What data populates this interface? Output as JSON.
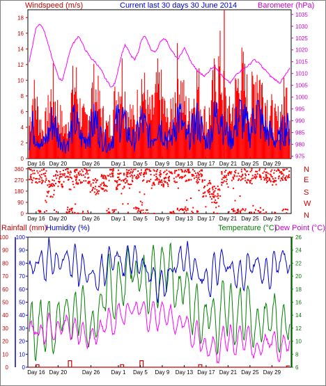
{
  "header": {
    "windspeed": "Windspeed (m/s)",
    "title": "Current last 30 days 30 June 2014",
    "barometer": "Barometer (hPa)"
  },
  "footer": {
    "rainfall": "Rainfall (mm)",
    "humidity": "Humidity (%)",
    "temperature": "Temperature (°C)",
    "dewpoint": "Dew Point (°C)"
  },
  "colors": {
    "gust": "#ff0000",
    "wind": "#0000ff",
    "baro": "#ff00ff",
    "dir": "#ff0000",
    "rain": "#cc0000",
    "hum": "#0000cc",
    "temp": "#008000",
    "dew": "#ff00ff",
    "frame": "#000000",
    "border": "#7f7f7f",
    "axisLeftTop": "#cc0000",
    "axisRight": "#cc00cc",
    "axisRain": "#cc0000",
    "axisHum": "#0000cc",
    "axisTemp": "#008000"
  },
  "chart_data": [
    {
      "type": "line",
      "panel": "wind-barometer",
      "x_labels": [
        "Day 16",
        "Day 20",
        "Day 26",
        "Day 1",
        "Day 5",
        "Day 9",
        "Day 13",
        "Day 17",
        "Day 21",
        "Day 25",
        "Day 29"
      ],
      "x_label_day_index": [
        1,
        5,
        11,
        16,
        20,
        24,
        28,
        32,
        36,
        40,
        44
      ],
      "days": 30,
      "y_left_label": "Windspeed (m/s)",
      "y_left_ticks": [
        0,
        2,
        4,
        6,
        8,
        10,
        12,
        14,
        16,
        18
      ],
      "y_left_range": [
        0,
        19
      ],
      "y_right_label": "Barometer (hPa)",
      "y_right_ticks": [
        975,
        980,
        985,
        990,
        995,
        1000,
        1005,
        1010,
        1015,
        1020,
        1025,
        1030,
        1035
      ],
      "y_right_range": [
        974,
        1037
      ],
      "series": [
        {
          "name": "Windspeed gust",
          "axis": "left",
          "values": [
            5,
            9,
            8,
            6,
            4,
            5,
            7,
            10,
            8,
            6,
            5,
            4,
            6,
            9,
            11,
            8,
            6,
            5,
            7,
            9,
            10,
            8,
            6,
            5,
            4,
            6,
            8,
            10,
            12,
            9,
            7,
            6,
            5,
            8,
            11,
            9,
            7,
            6,
            8,
            10,
            9,
            7,
            5,
            6,
            9,
            12,
            10,
            8,
            6,
            7,
            9,
            11,
            8,
            6,
            5,
            7,
            10,
            12,
            13,
            9,
            7,
            6,
            8,
            10,
            12,
            11,
            9,
            7,
            10,
            13,
            11,
            9,
            8,
            7,
            6,
            5,
            6,
            8,
            9,
            7
          ]
        },
        {
          "name": "Windspeed average",
          "axis": "left",
          "values": [
            3,
            5,
            4,
            3,
            2,
            3,
            4,
            6,
            5,
            3,
            3,
            2,
            3,
            5,
            6,
            4,
            3,
            3,
            4,
            5,
            6,
            5,
            3,
            3,
            2,
            3,
            5,
            6,
            7,
            5,
            4,
            3,
            3,
            4,
            6,
            5,
            4,
            3,
            4,
            6,
            5,
            4,
            3,
            3,
            5,
            7,
            6,
            4,
            3,
            4,
            5,
            6,
            5,
            3,
            3,
            4,
            6,
            7,
            8,
            5,
            4,
            3,
            4,
            6,
            7,
            6,
            5,
            4,
            6,
            8,
            6,
            5,
            4,
            4,
            3,
            3,
            3,
            5,
            5,
            4
          ]
        },
        {
          "name": "Barometer",
          "axis": "right",
          "values": [
            1015,
            1022,
            1029,
            1031,
            1030,
            1026,
            1021,
            1016,
            1012,
            1008,
            1007,
            1012,
            1018,
            1022,
            1024,
            1026,
            1023,
            1020,
            1018,
            1016,
            1015,
            1013,
            1011,
            1008,
            1006,
            1004,
            1006,
            1012,
            1018,
            1022,
            1020,
            1017,
            1016,
            1019,
            1024,
            1026,
            1023,
            1020,
            1019,
            1021,
            1024,
            1025,
            1023,
            1020,
            1018,
            1016,
            1018,
            1021,
            1018,
            1015,
            1013,
            1011,
            1010,
            1009,
            1010,
            1012,
            1013,
            1012,
            1010,
            1008,
            1007,
            1006,
            1008,
            1010,
            1011,
            1012,
            1013,
            1014,
            1016,
            1015,
            1014,
            1012,
            1011,
            1009,
            1008,
            1007,
            1006,
            1008,
            1010,
            1012
          ]
        }
      ]
    },
    {
      "type": "scatter",
      "panel": "wind-direction",
      "y_ticks": [
        0,
        90,
        180,
        270,
        360
      ],
      "y_range": [
        0,
        370
      ],
      "y_right_labels": [
        "N",
        "W",
        "S",
        "E",
        "N"
      ],
      "series": [
        {
          "name": "Wind direction",
          "cluster_centers": [
            300,
            320,
            200,
            280,
            340,
            300,
            310,
            220,
            250,
            330,
            260,
            300,
            340,
            320,
            300,
            280,
            320,
            350,
            330,
            310,
            200,
            150,
            280,
            330,
            330,
            310,
            340,
            320,
            300,
            330
          ]
        }
      ]
    },
    {
      "type": "line",
      "panel": "rain-humidity-temperature",
      "y_left_rain_label": "Rainfall (mm)",
      "y_left_rain_ticks": [
        0,
        10,
        20,
        30,
        40,
        50,
        60,
        70,
        80,
        90,
        100
      ],
      "y_left_hum_label": "Humidity (%)",
      "y_left_hum_ticks": [
        0,
        10,
        20,
        30,
        40,
        50,
        60,
        70,
        80,
        90,
        100
      ],
      "y_right_label": "Temperature (°C)",
      "y_right_ticks": [
        6,
        8,
        10,
        12,
        14,
        16,
        18,
        20,
        22,
        24,
        26
      ],
      "y_range_left": [
        0,
        100
      ],
      "y_range_right": [
        6,
        26
      ],
      "series": [
        {
          "name": "Humidity",
          "axis": "left",
          "values": [
            80,
            65,
            90,
            75,
            88,
            70,
            92,
            78,
            85,
            72,
            90,
            80,
            86,
            74,
            88,
            70,
            82,
            68,
            78,
            64,
            74,
            60,
            80,
            70,
            86,
            76,
            90,
            78,
            84,
            72,
            90,
            80,
            88,
            76,
            86,
            70,
            80,
            64,
            72,
            58,
            68,
            56,
            76,
            66,
            84,
            74,
            90,
            80,
            88,
            74,
            82,
            68,
            76,
            62,
            72,
            58,
            82,
            70,
            86,
            76,
            84,
            70,
            78,
            66,
            76,
            64,
            82,
            72,
            86,
            74,
            80,
            68,
            76,
            66,
            84,
            74,
            88,
            80,
            84,
            78
          ]
        },
        {
          "name": "Temperature",
          "axis": "right",
          "values": [
            11,
            13,
            10,
            12,
            14,
            11,
            13,
            12,
            10,
            14,
            15,
            13,
            16,
            12,
            15,
            14,
            17,
            13,
            12,
            11,
            13,
            15,
            14,
            18,
            21,
            17,
            16,
            19,
            20,
            17,
            22,
            23,
            18,
            20,
            22,
            19,
            17,
            20,
            22,
            18,
            21,
            23,
            20,
            22,
            19,
            16,
            18,
            20,
            17,
            15,
            14,
            16,
            13,
            12,
            14,
            16,
            13,
            11,
            15,
            17,
            14,
            16,
            12,
            14,
            15,
            13,
            16,
            14,
            12,
            11,
            13,
            14,
            12,
            15,
            14,
            13,
            11,
            12,
            14,
            13
          ]
        },
        {
          "name": "Dew Point",
          "axis": "right",
          "values": [
            12,
            11,
            13,
            10,
            12,
            11,
            13,
            12,
            11,
            12,
            13,
            12,
            13,
            11,
            12,
            11,
            12,
            10,
            11,
            10,
            11,
            12,
            11,
            13,
            14,
            12,
            13,
            14,
            15,
            13,
            15,
            16,
            14,
            15,
            16,
            14,
            13,
            14,
            15,
            13,
            14,
            15,
            13,
            14,
            13,
            12,
            13,
            14,
            12,
            11,
            10,
            12,
            10,
            9,
            8,
            10,
            9,
            8,
            9,
            11,
            10,
            11,
            9,
            10,
            11,
            10,
            11,
            10,
            9,
            8,
            9,
            10,
            9,
            11,
            10,
            9,
            8,
            9,
            10,
            10
          ]
        },
        {
          "name": "Rainfall",
          "axis": "left",
          "values": [
            0,
            0,
            2,
            0,
            0,
            0,
            0,
            0,
            0,
            0,
            0,
            0,
            5,
            0,
            0,
            0,
            0,
            0,
            0,
            0,
            0,
            0,
            0,
            0,
            0,
            0,
            0,
            0,
            2,
            0,
            0,
            0,
            0,
            0,
            5,
            0,
            0,
            0,
            0,
            0,
            0,
            0,
            0,
            0,
            0,
            0,
            0,
            0,
            0,
            0,
            0,
            0,
            2,
            0,
            0,
            0,
            0,
            0,
            0,
            0,
            0,
            0,
            0,
            0,
            0,
            0,
            0,
            0,
            0,
            0,
            0,
            0,
            0,
            0,
            0,
            0,
            0,
            0,
            0,
            1
          ]
        }
      ]
    }
  ]
}
